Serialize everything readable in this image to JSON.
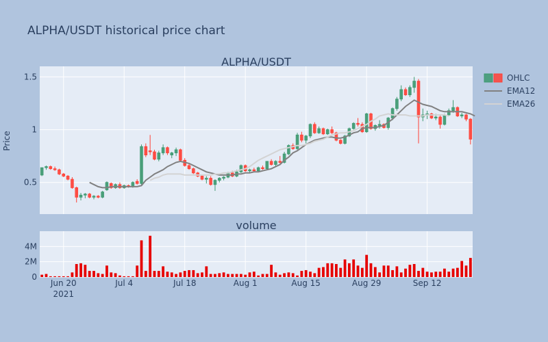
{
  "chart_data": {
    "type": "candlestick",
    "title": "ALPHA/USDT historical price chart",
    "subplots": [
      {
        "title": "ALPHA/USDT",
        "ylabel": "Price",
        "ylim": [
          0.2,
          1.6
        ],
        "yticks": [
          0.5,
          1,
          1.5
        ],
        "ytick_labels": [
          "0.5",
          "1",
          "1.5"
        ]
      },
      {
        "title": "volume",
        "ylim": [
          0,
          6000000
        ],
        "yticks": [
          0,
          2000000,
          4000000
        ],
        "ytick_labels": [
          "0",
          "2M",
          "4M"
        ]
      }
    ],
    "xaxis": {
      "start_date": "2021-06-15",
      "ticks": [
        {
          "day": 5,
          "label": "Jun 20",
          "sublabel": "2021"
        },
        {
          "day": 19,
          "label": "Jul 4"
        },
        {
          "day": 33,
          "label": "Jul 18"
        },
        {
          "day": 47,
          "label": "Aug 1"
        },
        {
          "day": 61,
          "label": "Aug 15"
        },
        {
          "day": 75,
          "label": "Aug 29"
        },
        {
          "day": 89,
          "label": "Sep 12"
        }
      ],
      "range": [
        -0.5,
        99.5
      ]
    },
    "legend": {
      "position": "top-right",
      "entries": [
        "OHLC",
        "EMA12",
        "EMA26"
      ]
    },
    "series": [
      {
        "name": "OHLC",
        "ohlc": [
          [
            0.57,
            0.64,
            0.56,
            0.64
          ],
          [
            0.64,
            0.66,
            0.62,
            0.65
          ],
          [
            0.65,
            0.66,
            0.62,
            0.63
          ],
          [
            0.63,
            0.65,
            0.61,
            0.62
          ],
          [
            0.62,
            0.63,
            0.57,
            0.58
          ],
          [
            0.58,
            0.59,
            0.55,
            0.56
          ],
          [
            0.56,
            0.57,
            0.52,
            0.53
          ],
          [
            0.53,
            0.55,
            0.44,
            0.45
          ],
          [
            0.45,
            0.46,
            0.31,
            0.36
          ],
          [
            0.36,
            0.4,
            0.33,
            0.38
          ],
          [
            0.38,
            0.4,
            0.35,
            0.39
          ],
          [
            0.39,
            0.4,
            0.35,
            0.36
          ],
          [
            0.36,
            0.38,
            0.34,
            0.37
          ],
          [
            0.37,
            0.38,
            0.35,
            0.36
          ],
          [
            0.36,
            0.42,
            0.35,
            0.41
          ],
          [
            0.43,
            0.51,
            0.42,
            0.5
          ],
          [
            0.49,
            0.5,
            0.44,
            0.45
          ],
          [
            0.45,
            0.49,
            0.44,
            0.48
          ],
          [
            0.48,
            0.5,
            0.44,
            0.45
          ],
          [
            0.45,
            0.48,
            0.44,
            0.47
          ],
          [
            0.47,
            0.48,
            0.45,
            0.46
          ],
          [
            0.46,
            0.51,
            0.45,
            0.5
          ],
          [
            0.51,
            0.53,
            0.48,
            0.49
          ],
          [
            0.49,
            0.86,
            0.48,
            0.84
          ],
          [
            0.84,
            0.87,
            0.74,
            0.76
          ],
          [
            0.8,
            0.95,
            0.76,
            0.79
          ],
          [
            0.79,
            0.81,
            0.71,
            0.72
          ],
          [
            0.72,
            0.8,
            0.7,
            0.78
          ],
          [
            0.78,
            0.86,
            0.76,
            0.83
          ],
          [
            0.83,
            0.84,
            0.76,
            0.78
          ],
          [
            0.76,
            0.79,
            0.73,
            0.78
          ],
          [
            0.78,
            0.83,
            0.75,
            0.81
          ],
          [
            0.81,
            0.82,
            0.7,
            0.71
          ],
          [
            0.71,
            0.73,
            0.65,
            0.66
          ],
          [
            0.66,
            0.68,
            0.62,
            0.63
          ],
          [
            0.63,
            0.64,
            0.58,
            0.59
          ],
          [
            0.59,
            0.6,
            0.55,
            0.56
          ],
          [
            0.56,
            0.57,
            0.52,
            0.53
          ],
          [
            0.53,
            0.56,
            0.49,
            0.54
          ],
          [
            0.54,
            0.56,
            0.47,
            0.48
          ],
          [
            0.48,
            0.53,
            0.42,
            0.52
          ],
          [
            0.52,
            0.55,
            0.5,
            0.54
          ],
          [
            0.54,
            0.56,
            0.52,
            0.55
          ],
          [
            0.55,
            0.6,
            0.54,
            0.59
          ],
          [
            0.59,
            0.61,
            0.55,
            0.56
          ],
          [
            0.56,
            0.62,
            0.55,
            0.6
          ],
          [
            0.6,
            0.67,
            0.59,
            0.66
          ],
          [
            0.66,
            0.67,
            0.6,
            0.61
          ],
          [
            0.61,
            0.63,
            0.59,
            0.62
          ],
          [
            0.62,
            0.64,
            0.6,
            0.61
          ],
          [
            0.61,
            0.65,
            0.6,
            0.64
          ],
          [
            0.64,
            0.66,
            0.62,
            0.63
          ],
          [
            0.63,
            0.7,
            0.62,
            0.7
          ],
          [
            0.7,
            0.72,
            0.66,
            0.67
          ],
          [
            0.67,
            0.71,
            0.65,
            0.7
          ],
          [
            0.7,
            0.75,
            0.68,
            0.69
          ],
          [
            0.69,
            0.79,
            0.68,
            0.77
          ],
          [
            0.77,
            0.86,
            0.76,
            0.85
          ],
          [
            0.85,
            0.87,
            0.81,
            0.82
          ],
          [
            0.82,
            0.97,
            0.81,
            0.95
          ],
          [
            0.95,
            0.98,
            0.88,
            0.9
          ],
          [
            0.9,
            0.95,
            0.87,
            0.94
          ],
          [
            0.94,
            1.06,
            0.92,
            1.05
          ],
          [
            1.05,
            1.07,
            0.96,
            0.97
          ],
          [
            0.97,
            1.03,
            0.96,
            1.01
          ],
          [
            1.01,
            1.02,
            0.95,
            0.96
          ],
          [
            0.96,
            1.01,
            0.95,
            1.0
          ],
          [
            1.0,
            1.03,
            0.96,
            0.97
          ],
          [
            0.97,
            0.98,
            0.89,
            0.9
          ],
          [
            0.9,
            0.91,
            0.86,
            0.87
          ],
          [
            0.87,
            0.95,
            0.86,
            0.94
          ],
          [
            0.94,
            1.02,
            0.93,
            1.01
          ],
          [
            1.01,
            1.07,
            1.0,
            1.06
          ],
          [
            1.06,
            1.11,
            1.03,
            1.05
          ],
          [
            1.05,
            1.07,
            0.97,
            0.98
          ],
          [
            0.98,
            1.16,
            0.97,
            1.15
          ],
          [
            1.15,
            1.16,
            1.0,
            1.01
          ],
          [
            1.01,
            1.05,
            0.99,
            1.04
          ],
          [
            1.04,
            1.09,
            1.01,
            1.05
          ],
          [
            1.05,
            1.06,
            1.01,
            1.02
          ],
          [
            1.02,
            1.12,
            1.0,
            1.11
          ],
          [
            1.11,
            1.21,
            1.09,
            1.2
          ],
          [
            1.2,
            1.31,
            1.18,
            1.29
          ],
          [
            1.29,
            1.42,
            1.27,
            1.38
          ],
          [
            1.38,
            1.4,
            1.32,
            1.33
          ],
          [
            1.33,
            1.42,
            1.31,
            1.4
          ],
          [
            1.4,
            1.5,
            1.35,
            1.46
          ],
          [
            1.46,
            1.48,
            0.87,
            1.12
          ],
          [
            1.12,
            1.2,
            1.08,
            1.14
          ],
          [
            1.14,
            1.18,
            1.1,
            1.15
          ],
          [
            1.15,
            1.16,
            1.1,
            1.11
          ],
          [
            1.11,
            1.15,
            1.09,
            1.12
          ],
          [
            1.12,
            1.14,
            1.01,
            1.05
          ],
          [
            1.05,
            1.15,
            1.04,
            1.14
          ],
          [
            1.14,
            1.2,
            1.13,
            1.18
          ],
          [
            1.18,
            1.28,
            1.16,
            1.21
          ],
          [
            1.21,
            1.22,
            1.12,
            1.13
          ],
          [
            1.13,
            1.16,
            1.11,
            1.14
          ],
          [
            1.14,
            1.15,
            1.08,
            1.1
          ],
          [
            1.1,
            1.11,
            0.86,
            0.91
          ]
        ]
      },
      {
        "name": "EMA12",
        "start": 11,
        "values": [
          0.5,
          0.48,
          0.46,
          0.45,
          0.45,
          0.46,
          0.46,
          0.46,
          0.46,
          0.46,
          0.46,
          0.46,
          0.47,
          0.52,
          0.55,
          0.58,
          0.6,
          0.62,
          0.65,
          0.67,
          0.69,
          0.7,
          0.69,
          0.68,
          0.66,
          0.64,
          0.62,
          0.6,
          0.59,
          0.58,
          0.57,
          0.57,
          0.57,
          0.57,
          0.58,
          0.58,
          0.59,
          0.59,
          0.6,
          0.6,
          0.61,
          0.62,
          0.63,
          0.65,
          0.67,
          0.71,
          0.74,
          0.78,
          0.8,
          0.83,
          0.86,
          0.88,
          0.9,
          0.91,
          0.92,
          0.93,
          0.93,
          0.92,
          0.92,
          0.93,
          0.95,
          0.97,
          0.98,
          1.01,
          1.02,
          1.02,
          1.02,
          1.03,
          1.04,
          1.07,
          1.1,
          1.14,
          1.18,
          1.22,
          1.25,
          1.28,
          1.26,
          1.24,
          1.23,
          1.22,
          1.2,
          1.18,
          1.17,
          1.17,
          1.17,
          1.17,
          1.17,
          1.16,
          1.15,
          1.13
        ]
      },
      {
        "name": "EMA26",
        "start": 25,
        "values": [
          0.52,
          0.54,
          0.55,
          0.57,
          0.58,
          0.58,
          0.58,
          0.58,
          0.57,
          0.57,
          0.57,
          0.57,
          0.57,
          0.57,
          0.57,
          0.58,
          0.58,
          0.59,
          0.59,
          0.6,
          0.61,
          0.62,
          0.63,
          0.65,
          0.68,
          0.71,
          0.73,
          0.75,
          0.77,
          0.79,
          0.81,
          0.82,
          0.83,
          0.84,
          0.85,
          0.85,
          0.86,
          0.87,
          0.89,
          0.9,
          0.91,
          0.93,
          0.95,
          0.96,
          0.97,
          0.97,
          0.98,
          0.99,
          1.01,
          1.03,
          1.05,
          1.08,
          1.1,
          1.13,
          1.14,
          1.15,
          1.14,
          1.14,
          1.14,
          1.14,
          1.13,
          1.13,
          1.13,
          1.13,
          1.14,
          1.14,
          1.14,
          1.14,
          1.14,
          1.13
        ]
      },
      {
        "name": "volume",
        "values": [
          0.3,
          0.4,
          0.1,
          0.1,
          0.1,
          0.1,
          0.1,
          0.6,
          1.7,
          1.8,
          1.6,
          0.8,
          0.8,
          0.5,
          0.4,
          1.5,
          0.6,
          0.5,
          0.2,
          0.1,
          0.1,
          0.1,
          1.5,
          4.8,
          0.8,
          5.4,
          0.8,
          0.8,
          1.4,
          0.7,
          0.6,
          0.4,
          0.6,
          0.8,
          0.9,
          0.9,
          0.5,
          0.6,
          1.4,
          0.4,
          0.4,
          0.5,
          0.6,
          0.4,
          0.4,
          0.4,
          0.4,
          0.3,
          0.6,
          0.7,
          0.2,
          0.4,
          0.4,
          1.6,
          0.6,
          0.3,
          0.5,
          0.6,
          0.5,
          0.2,
          0.8,
          0.9,
          0.7,
          0.5,
          1.2,
          1.3,
          1.8,
          1.8,
          1.7,
          1.2,
          2.3,
          1.8,
          2.3,
          1.5,
          1.2,
          2.9,
          1.8,
          1.3,
          0.6,
          1.5,
          1.5,
          0.9,
          1.4,
          0.6,
          1.1,
          1.6,
          1.7,
          0.8,
          1.2,
          0.7,
          0.6,
          0.7,
          0.7,
          1.1,
          0.7,
          1.1,
          1.2,
          2.1,
          1.5,
          2.5
        ]
      }
    ]
  }
}
